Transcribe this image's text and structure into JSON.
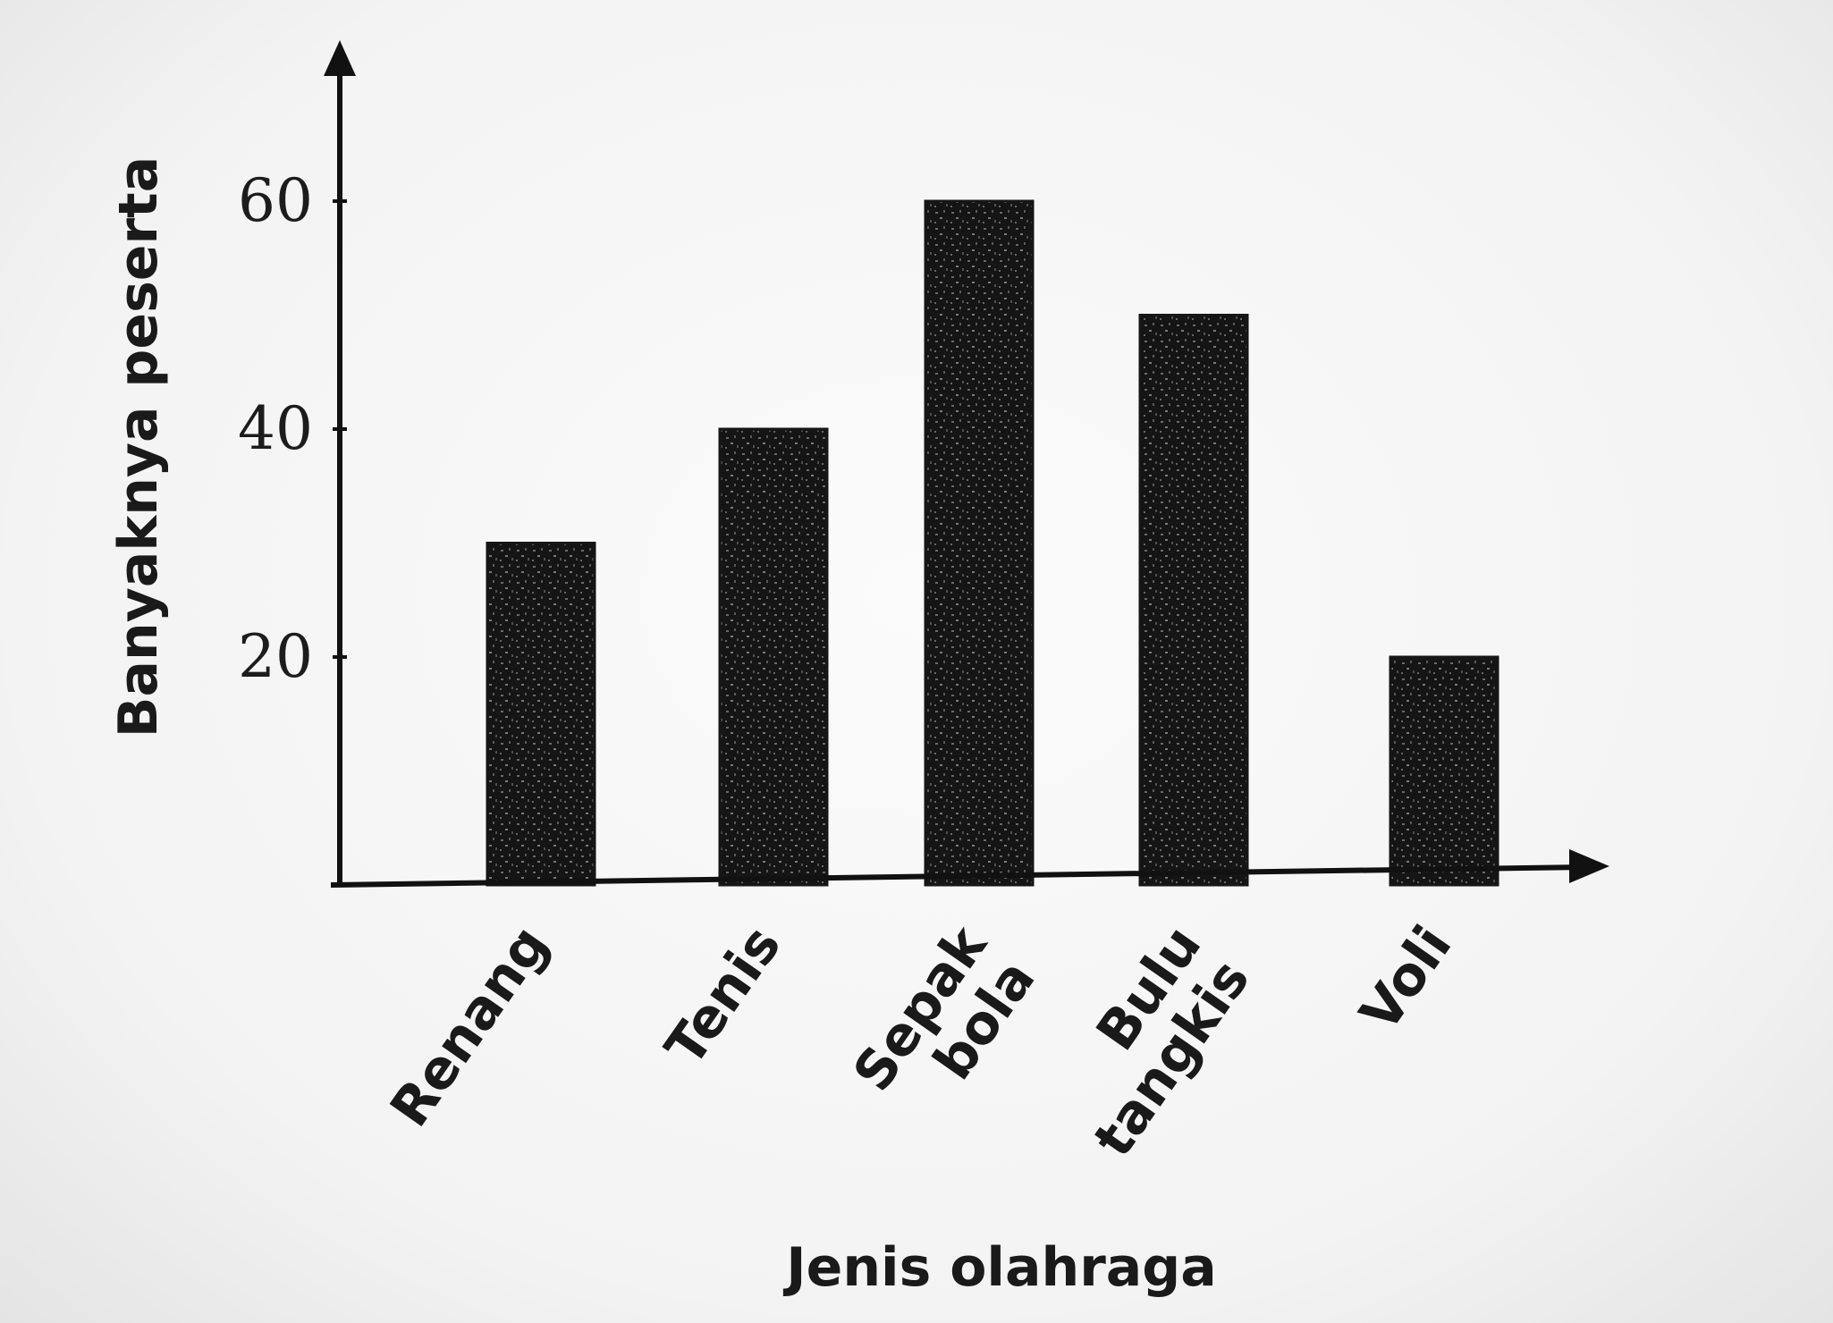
{
  "chart_data": {
    "type": "bar",
    "categories": [
      "Renang",
      "Tenis",
      "Sepak bola",
      "Bulu tangkis",
      "Voli"
    ],
    "category_lines": [
      [
        "Renang"
      ],
      [
        "Tenis"
      ],
      [
        "Sepak",
        "bola"
      ],
      [
        "Bulu",
        "tangkis"
      ],
      [
        "Voli"
      ]
    ],
    "values": [
      30,
      40,
      60,
      50,
      20
    ],
    "xlabel": "Jenis olahraga",
    "ylabel": "Banyaknya peserta",
    "yticks": [
      20,
      40,
      60
    ],
    "ylim": [
      0,
      70
    ],
    "grid": false,
    "legend": "none"
  },
  "colors": {
    "bar": "#161616",
    "axis": "#111111",
    "text": "#1a1a1a"
  }
}
